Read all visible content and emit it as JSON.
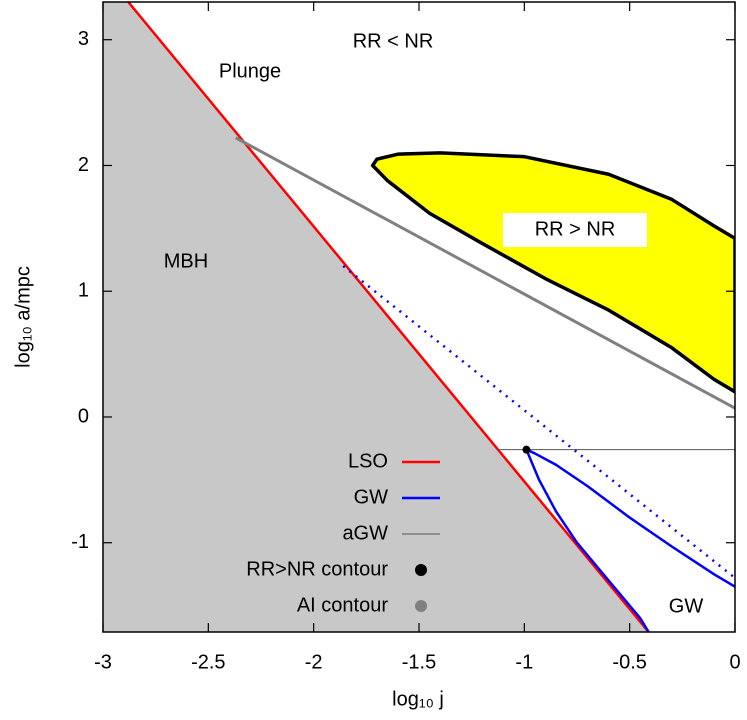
{
  "chart_data": {
    "type": "line",
    "xlabel": "log₁₀ j",
    "ylabel": "log₁₀ a/mpc",
    "xlim": [
      -3,
      0
    ],
    "ylim": [
      -1.71,
      3.3
    ],
    "xticks": [
      -3,
      -2.5,
      -2,
      -1.5,
      -1,
      -0.5,
      0
    ],
    "yticks": [
      -1,
      0,
      1,
      2,
      3
    ],
    "annotations": [
      "Plunge",
      "RR < NR",
      "MBH",
      "RR > NR",
      "GW"
    ],
    "series": [
      {
        "name": "LSO",
        "color": "#ff0000",
        "width": 2.5,
        "fill_below": "#c8c8c8",
        "legend_marker": "line",
        "x": [
          -2.88,
          -0.41
        ],
        "y": [
          3.3,
          -1.71
        ]
      },
      {
        "name": "GW",
        "color": "#0000ff",
        "width": 2.5,
        "legend_marker": "line",
        "x": [
          -0.41,
          -0.45,
          -0.55,
          -0.65,
          -0.75,
          -0.85,
          -0.93,
          -0.98,
          -0.99,
          -0.95,
          -0.85,
          -0.7,
          -0.5,
          -0.3,
          -0.1,
          0
        ],
        "y": [
          -1.71,
          -1.6,
          -1.4,
          -1.2,
          -1.0,
          -0.75,
          -0.5,
          -0.3,
          -0.26,
          -0.29,
          -0.38,
          -0.55,
          -0.8,
          -1.03,
          -1.25,
          -1.35
        ]
      },
      {
        "name": "aGW",
        "color": "#555555",
        "width": 1,
        "legend_marker": "line",
        "x": [
          -1.13,
          0
        ],
        "y": [
          -0.26,
          -0.26
        ]
      },
      {
        "name": "RR>NR contour",
        "color": "#000000",
        "width": 3.5,
        "fill": "#ffff00",
        "legend_marker": "point",
        "x": [
          -1.72,
          -1.7,
          -1.6,
          -1.4,
          -1.0,
          -0.6,
          -0.3,
          -0.1,
          0,
          0,
          -0.1,
          -0.3,
          -0.6,
          -0.9,
          -1.2,
          -1.45,
          -1.65,
          -1.72
        ],
        "y": [
          2.0,
          2.05,
          2.09,
          2.1,
          2.07,
          1.93,
          1.73,
          1.52,
          1.42,
          0.2,
          0.3,
          0.55,
          0.85,
          1.1,
          1.38,
          1.62,
          1.88,
          2.0
        ]
      },
      {
        "name": "AI contour",
        "color": "#808080",
        "width": 3,
        "legend_marker": "point",
        "x": [
          -2.37,
          0
        ],
        "y": [
          2.22,
          0.07
        ]
      },
      {
        "color": "#0000ff",
        "width": 2.5,
        "dash": "2 6",
        "x": [
          -1.86,
          0
        ],
        "y": [
          1.2,
          -1.28
        ]
      },
      {
        "color": "#000000",
        "marker": "point",
        "x": [
          -0.99
        ],
        "y": [
          -0.26
        ]
      }
    ]
  }
}
